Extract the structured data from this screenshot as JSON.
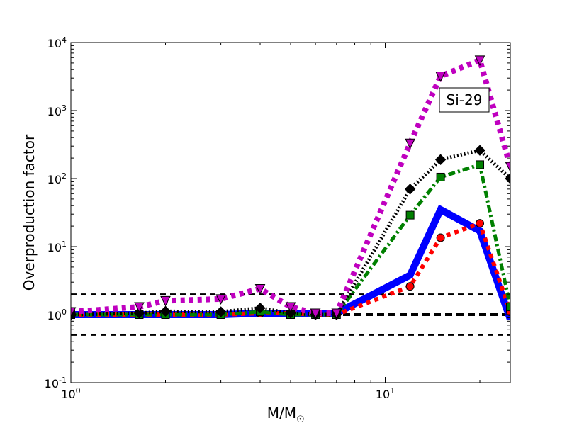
{
  "chart_data": {
    "type": "line",
    "annotation": "Si-29",
    "xlabel": "M/M",
    "xlabel_symbol": "☉",
    "ylabel": "Overproduction factor",
    "xscale": "log",
    "yscale": "log",
    "xlim": [
      1,
      25
    ],
    "ylim": [
      0.1,
      10000
    ],
    "x_ticks": [
      {
        "value": 1,
        "base": "10",
        "exp": "0"
      },
      {
        "value": 10,
        "base": "10",
        "exp": "1"
      }
    ],
    "y_ticks": [
      {
        "value": 0.1,
        "base": "10",
        "exp": "-1"
      },
      {
        "value": 1,
        "base": "10",
        "exp": "0"
      },
      {
        "value": 10,
        "base": "10",
        "exp": "1"
      },
      {
        "value": 100,
        "base": "10",
        "exp": "2"
      },
      {
        "value": 1000,
        "base": "10",
        "exp": "3"
      },
      {
        "value": 10000,
        "base": "10",
        "exp": "4"
      }
    ],
    "reference_lines": [
      {
        "y": 0.5,
        "style": "thin-dashed"
      },
      {
        "y": 1,
        "style": "thick-dashed"
      },
      {
        "y": 2,
        "style": "thin-dashed"
      }
    ],
    "series": [
      {
        "color": "#0000ff",
        "linestyle": "solid",
        "linewidth": 10,
        "marker": "none",
        "x": [
          1,
          1.65,
          2,
          3,
          4,
          5,
          6,
          7,
          12,
          15,
          20,
          25
        ],
        "y": [
          1.0,
          1.0,
          1.0,
          1.0,
          1.05,
          1.05,
          1.05,
          1.05,
          3.8,
          35,
          17,
          0.85
        ]
      },
      {
        "color": "#ff0000",
        "linestyle": "dotted",
        "linewidth": 6,
        "marker": "circle",
        "x": [
          1,
          1.65,
          2,
          3,
          4,
          5,
          6,
          7,
          12,
          15,
          20,
          25
        ],
        "y": [
          1.0,
          1.0,
          1.0,
          1.0,
          1.05,
          1.05,
          1.0,
          1.0,
          2.6,
          13.5,
          22,
          1.1
        ]
      },
      {
        "color": "#008000",
        "linestyle": "dashdot",
        "linewidth": 5,
        "marker": "square",
        "x": [
          1,
          1.65,
          2,
          3,
          4,
          5,
          6,
          7,
          12,
          15,
          20,
          25
        ],
        "y": [
          1.0,
          1.0,
          1.0,
          1.0,
          1.1,
          1.0,
          1.0,
          1.0,
          29,
          105,
          160,
          1.3
        ]
      },
      {
        "color": "#000000",
        "linestyle": "densely-dotted",
        "linewidth": 5,
        "marker": "diamond",
        "x": [
          1,
          1.65,
          2,
          3,
          4,
          5,
          6,
          7,
          12,
          15,
          20,
          25
        ],
        "y": [
          1.0,
          1.05,
          1.12,
          1.1,
          1.25,
          1.05,
          1.0,
          1.0,
          70,
          190,
          260,
          100
        ]
      },
      {
        "color": "#bf00bf",
        "linestyle": "dotted",
        "linewidth": 8,
        "marker": "triangle-down",
        "x": [
          1,
          1.65,
          2,
          3,
          4,
          5,
          6,
          7,
          12,
          15,
          20,
          25
        ],
        "y": [
          1.1,
          1.3,
          1.6,
          1.7,
          2.4,
          1.3,
          1.05,
          1.05,
          330,
          3200,
          5500,
          150
        ]
      }
    ]
  }
}
